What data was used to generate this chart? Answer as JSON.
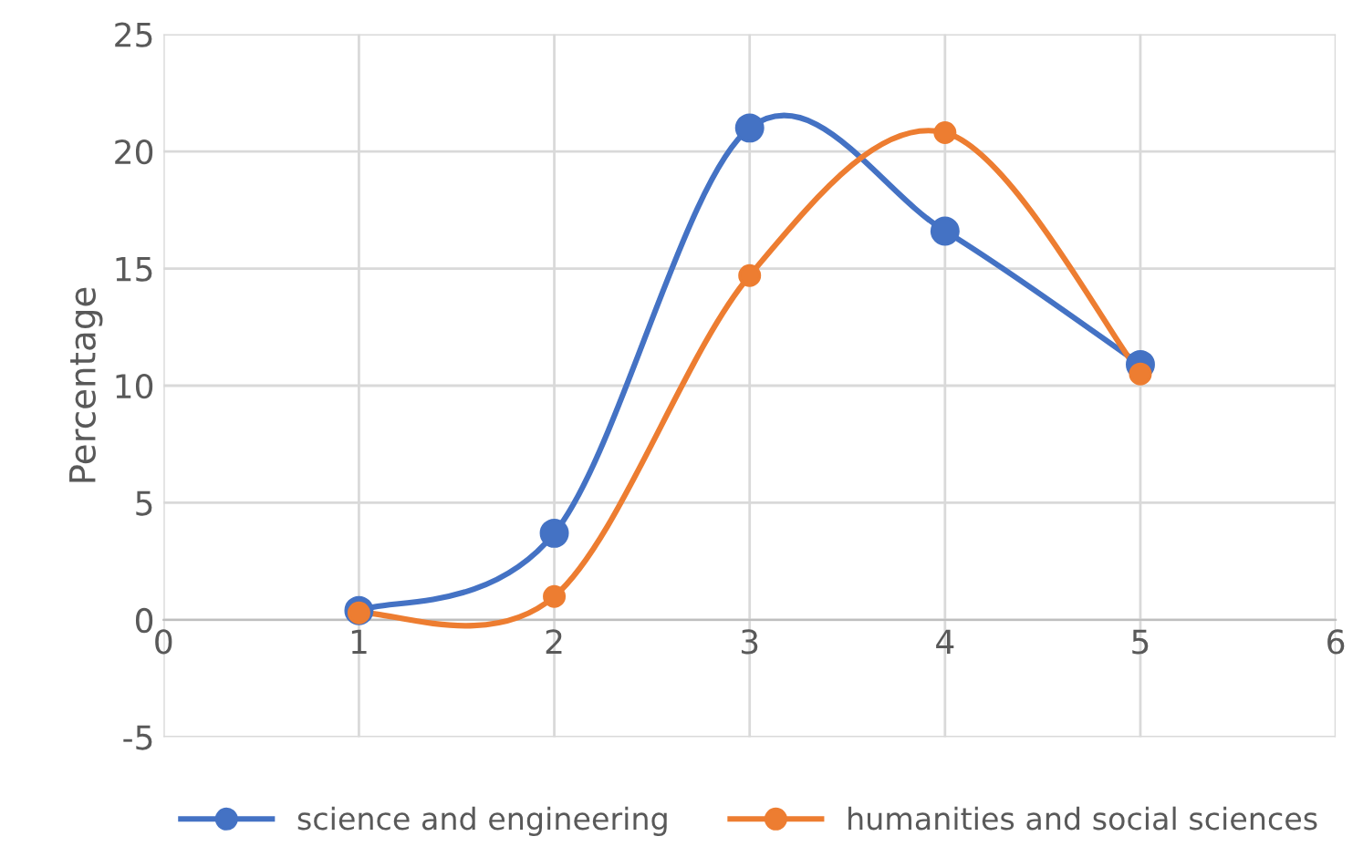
{
  "chart_data": {
    "type": "line",
    "ylabel": "Percentage",
    "x": [
      1,
      2,
      3,
      4,
      5
    ],
    "series": [
      {
        "name": "science and engineering",
        "color": "#4472c4",
        "values": [
          0.4,
          3.7,
          21.0,
          16.6,
          10.9
        ]
      },
      {
        "name": "humanities and social sciences",
        "color": "#ed7d31",
        "values": [
          0.3,
          1.0,
          14.7,
          20.8,
          10.5
        ]
      }
    ],
    "xlim": [
      0,
      6
    ],
    "xticks": [
      0,
      1,
      2,
      3,
      4,
      5,
      6
    ],
    "ylim": [
      -5,
      25
    ],
    "yticks": [
      -5,
      0,
      5,
      10,
      15,
      20,
      25
    ],
    "grid": true,
    "legend": "bottom",
    "marker": "circle",
    "line_style": "solid"
  }
}
